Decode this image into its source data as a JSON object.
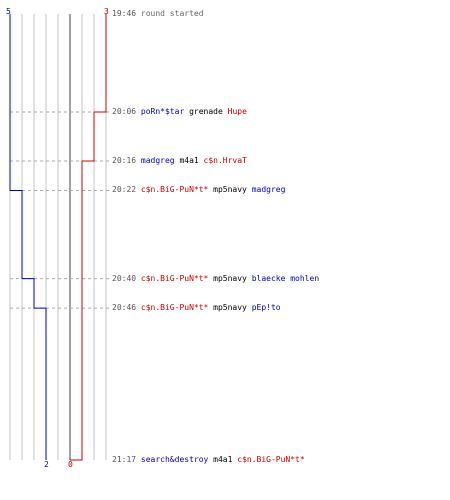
{
  "teams": {
    "blue": {
      "color": "#0000cc",
      "start_score": "5",
      "end_score": "2"
    },
    "red": {
      "color": "#cc0000",
      "start_score": "3",
      "end_score": "0"
    }
  },
  "events": [
    {
      "time": "19:46",
      "parts": [
        {
          "text": "round started",
          "style": "grey"
        }
      ]
    },
    {
      "time": "20:06",
      "parts": [
        {
          "text": "poRn*$tar",
          "style": "blue"
        },
        {
          "text": " grenade ",
          "style": "plain"
        },
        {
          "text": "Hupe",
          "style": "red"
        }
      ]
    },
    {
      "time": "20:16",
      "parts": [
        {
          "text": "madgreg",
          "style": "blue"
        },
        {
          "text": " m4a1 ",
          "style": "plain"
        },
        {
          "text": "c$n.HrvaT",
          "style": "red"
        }
      ]
    },
    {
      "time": "20:22",
      "parts": [
        {
          "text": "c$n.BiG-PuN*t*",
          "style": "red"
        },
        {
          "text": " mp5navy ",
          "style": "plain"
        },
        {
          "text": "madgreg",
          "style": "blue"
        }
      ]
    },
    {
      "time": "20:40",
      "parts": [
        {
          "text": "c$n.BiG-PuN*t*",
          "style": "red"
        },
        {
          "text": " mp5navy ",
          "style": "plain"
        },
        {
          "text": "blaecke mohlen",
          "style": "blue"
        }
      ]
    },
    {
      "time": "20:46",
      "parts": [
        {
          "text": "c$n.BiG-PuN*t*",
          "style": "red"
        },
        {
          "text": " mp5navy ",
          "style": "plain"
        },
        {
          "text": "pEp!to",
          "style": "blue"
        }
      ]
    },
    {
      "time": "21:17",
      "parts": [
        {
          "text": "search&destroy",
          "style": "blue"
        },
        {
          "text": " m4a1 ",
          "style": "plain"
        },
        {
          "text": "c$n.BiG-PuN*t*",
          "style": "red"
        }
      ]
    }
  ]
}
